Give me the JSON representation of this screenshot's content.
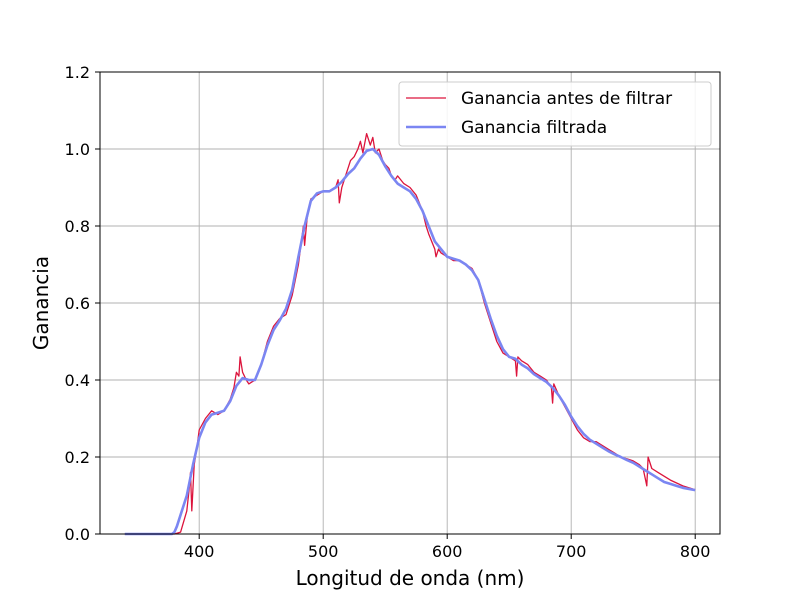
{
  "chart_data": {
    "type": "line",
    "title": "",
    "xlabel": "Longitud de onda (nm)",
    "ylabel": "Ganancia",
    "xlim": [
      320,
      820
    ],
    "ylim": [
      0,
      1.2
    ],
    "xticks": [
      400,
      500,
      600,
      700,
      800
    ],
    "yticks": [
      0.0,
      0.2,
      0.4,
      0.6,
      0.8,
      1.0,
      1.2
    ],
    "xtick_labels": [
      "400",
      "500",
      "600",
      "700",
      "800"
    ],
    "ytick_labels": [
      "0.0",
      "0.2",
      "0.4",
      "0.6",
      "0.8",
      "1.0",
      "1.2"
    ],
    "grid": true,
    "legend_position": "top-right",
    "series": [
      {
        "name": "Ganancia antes de filtrar",
        "color": "#dc143c",
        "x": [
          340,
          350,
          360,
          370,
          375,
          380,
          385,
          390,
          392,
          393,
          394,
          396,
          398,
          400,
          405,
          410,
          415,
          420,
          425,
          428,
          430,
          432,
          433,
          435,
          438,
          440,
          445,
          450,
          455,
          460,
          465,
          470,
          475,
          480,
          484,
          485,
          487,
          490,
          495,
          500,
          505,
          510,
          512,
          513,
          515,
          518,
          520,
          522,
          525,
          528,
          530,
          532,
          535,
          538,
          540,
          542,
          545,
          548,
          550,
          553,
          555,
          558,
          560,
          565,
          570,
          575,
          580,
          583,
          585,
          590,
          591,
          593,
          595,
          600,
          605,
          610,
          615,
          620,
          625,
          630,
          635,
          640,
          645,
          650,
          655,
          656,
          657,
          660,
          665,
          670,
          675,
          680,
          684,
          685,
          686,
          690,
          695,
          700,
          705,
          710,
          715,
          720,
          725,
          730,
          735,
          740,
          745,
          750,
          755,
          758,
          760,
          761,
          762,
          765,
          770,
          780,
          790,
          800
        ],
        "y": [
          0.0,
          0.0,
          0.0,
          0.0,
          0.0,
          0.0,
          0.005,
          0.06,
          0.12,
          0.16,
          0.06,
          0.18,
          0.22,
          0.27,
          0.3,
          0.32,
          0.31,
          0.32,
          0.35,
          0.38,
          0.42,
          0.41,
          0.46,
          0.42,
          0.4,
          0.39,
          0.4,
          0.44,
          0.5,
          0.54,
          0.56,
          0.57,
          0.62,
          0.7,
          0.8,
          0.75,
          0.82,
          0.87,
          0.88,
          0.89,
          0.89,
          0.9,
          0.92,
          0.86,
          0.9,
          0.93,
          0.95,
          0.97,
          0.98,
          1.0,
          1.02,
          0.99,
          1.04,
          1.01,
          1.03,
          0.99,
          1.0,
          0.97,
          0.96,
          0.95,
          0.93,
          0.92,
          0.93,
          0.91,
          0.9,
          0.88,
          0.84,
          0.8,
          0.78,
          0.74,
          0.72,
          0.74,
          0.73,
          0.72,
          0.71,
          0.71,
          0.7,
          0.69,
          0.66,
          0.6,
          0.55,
          0.5,
          0.47,
          0.46,
          0.45,
          0.41,
          0.46,
          0.45,
          0.44,
          0.42,
          0.41,
          0.4,
          0.38,
          0.34,
          0.39,
          0.36,
          0.33,
          0.3,
          0.27,
          0.25,
          0.24,
          0.24,
          0.23,
          0.22,
          0.21,
          0.2,
          0.195,
          0.19,
          0.18,
          0.17,
          0.14,
          0.125,
          0.2,
          0.17,
          0.16,
          0.14,
          0.125,
          0.115
        ]
      },
      {
        "name": "Ganancia filtrada",
        "color": "#7b86f2",
        "x": [
          340,
          350,
          360,
          370,
          375,
          378,
          380,
          382,
          385,
          390,
          395,
          400,
          405,
          410,
          415,
          420,
          425,
          430,
          435,
          440,
          445,
          450,
          455,
          460,
          465,
          470,
          475,
          480,
          485,
          490,
          495,
          500,
          505,
          510,
          515,
          520,
          525,
          530,
          535,
          540,
          545,
          550,
          555,
          560,
          565,
          570,
          575,
          580,
          585,
          590,
          595,
          600,
          605,
          610,
          615,
          620,
          625,
          630,
          635,
          640,
          645,
          650,
          655,
          660,
          665,
          670,
          675,
          680,
          685,
          690,
          695,
          700,
          705,
          710,
          715,
          720,
          725,
          730,
          735,
          740,
          745,
          750,
          755,
          760,
          765,
          770,
          775,
          780,
          785,
          790,
          795,
          800
        ],
        "y": [
          0.0,
          0.0,
          0.0,
          0.0,
          0.0,
          0.0,
          0.005,
          0.02,
          0.05,
          0.1,
          0.18,
          0.25,
          0.29,
          0.31,
          0.315,
          0.32,
          0.345,
          0.385,
          0.405,
          0.4,
          0.4,
          0.44,
          0.49,
          0.53,
          0.555,
          0.585,
          0.635,
          0.72,
          0.8,
          0.865,
          0.885,
          0.89,
          0.89,
          0.9,
          0.915,
          0.935,
          0.95,
          0.975,
          0.995,
          1.0,
          0.985,
          0.955,
          0.93,
          0.91,
          0.9,
          0.89,
          0.87,
          0.84,
          0.8,
          0.76,
          0.74,
          0.72,
          0.715,
          0.71,
          0.7,
          0.685,
          0.66,
          0.61,
          0.56,
          0.515,
          0.48,
          0.46,
          0.455,
          0.44,
          0.43,
          0.415,
          0.405,
          0.395,
          0.38,
          0.36,
          0.335,
          0.305,
          0.28,
          0.26,
          0.245,
          0.235,
          0.225,
          0.215,
          0.207,
          0.2,
          0.192,
          0.185,
          0.175,
          0.165,
          0.155,
          0.145,
          0.135,
          0.13,
          0.125,
          0.12,
          0.117,
          0.114
        ]
      }
    ]
  }
}
